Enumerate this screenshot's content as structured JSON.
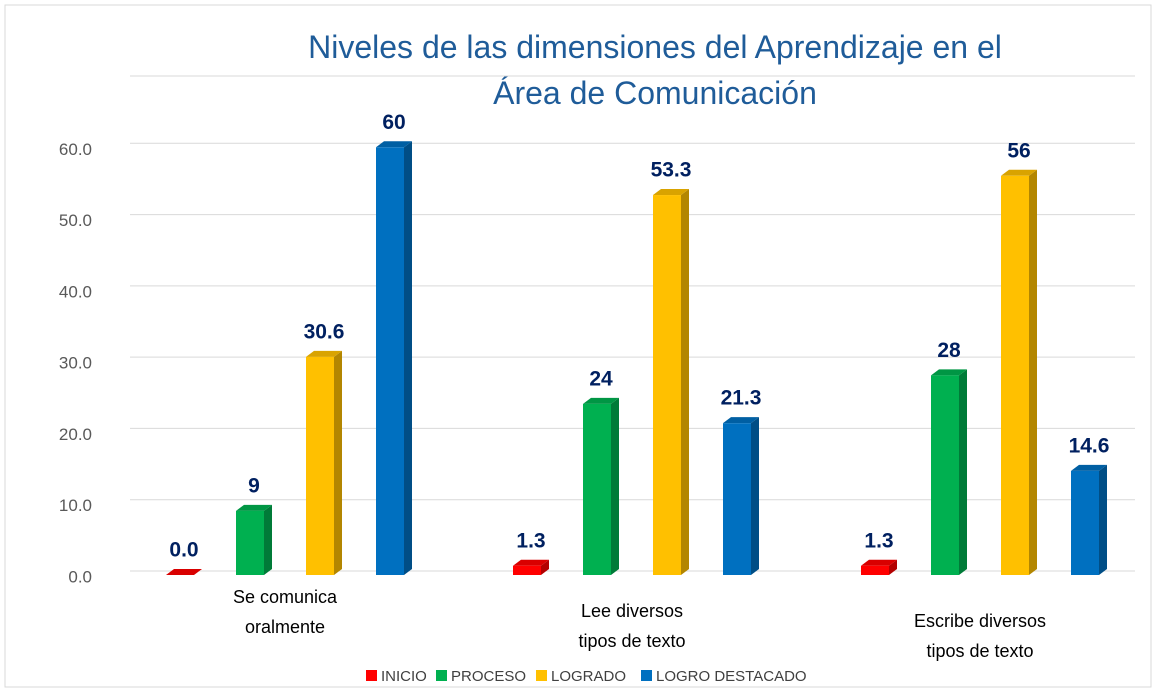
{
  "chart_data": {
    "type": "bar",
    "title": "Niveles de las dimensiones del Aprendizaje en el Área de Comunicación",
    "categories": [
      "Se comunica oralmente",
      "Lee diversos tipos de texto",
      "Escribe diversos tipos de texto"
    ],
    "series": [
      {
        "name": "INICIO",
        "color": "#ff0000",
        "values": [
          0,
          1.3,
          1.3
        ],
        "value_labels": [
          "0.0",
          "1.3",
          "1.3"
        ]
      },
      {
        "name": "PROCESO",
        "color": "#00b050",
        "values": [
          9,
          24,
          28
        ],
        "value_labels": [
          "9",
          "24",
          "28"
        ]
      },
      {
        "name": "LOGRADO",
        "color": "#ffc000",
        "values": [
          30.6,
          53.3,
          56
        ],
        "value_labels": [
          "30.6",
          "53.3",
          "56"
        ]
      },
      {
        "name": "LOGRO DESTACADO",
        "color": "#0070c0",
        "values": [
          60,
          21.3,
          14.6
        ],
        "value_labels": [
          "60",
          "21.3",
          "14.6"
        ]
      }
    ],
    "ylim": [
      0,
      70
    ],
    "yticks": [
      {
        "value": 0,
        "label": "0.0"
      },
      {
        "value": 10,
        "label": "10.0"
      },
      {
        "value": 20,
        "label": "20.0"
      },
      {
        "value": 30,
        "label": "30.0"
      },
      {
        "value": 40,
        "label": "40.0"
      },
      {
        "value": 50,
        "label": "50.0"
      },
      {
        "value": 60,
        "label": "60.0"
      }
    ],
    "grid": true,
    "legend": "bottom"
  }
}
